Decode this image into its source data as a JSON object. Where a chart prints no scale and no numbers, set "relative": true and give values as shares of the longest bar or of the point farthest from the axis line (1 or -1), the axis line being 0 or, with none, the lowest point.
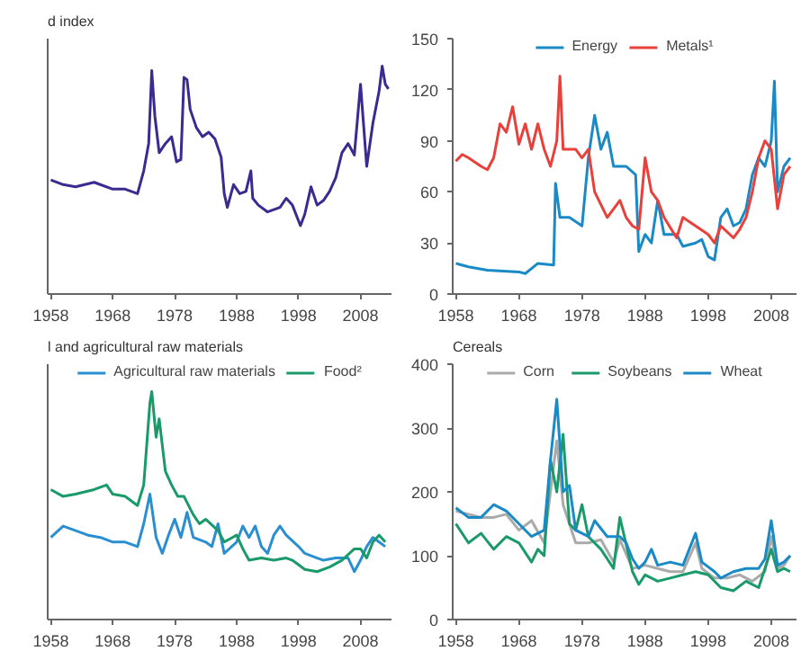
{
  "chart_data": [
    {
      "type": "line",
      "title": "d index",
      "relative": true,
      "xlim": [
        1957.5,
        2013
      ],
      "xticks": [
        1958,
        1968,
        1978,
        1988,
        1998,
        2008
      ],
      "grid": false,
      "legend": false,
      "series": [
        {
          "color": "#3b2a8f",
          "x": [
            1958,
            1960,
            1962,
            1965,
            1968,
            1970,
            1972,
            1973,
            1973.8,
            1974.3,
            1974.8,
            1975.5,
            1976.5,
            1977.5,
            1978.3,
            1979,
            1979.5,
            1980,
            1980.5,
            1981.5,
            1982.5,
            1983.5,
            1984.5,
            1985.5,
            1986,
            1986.5,
            1987.5,
            1988.5,
            1989.5,
            1990.3,
            1990.6,
            1991.5,
            1993,
            1995,
            1996,
            1997,
            1998.3,
            1999,
            2000,
            2001,
            2002,
            2003,
            2004,
            2005,
            2006,
            2007,
            2008,
            2008.5,
            2009,
            2010,
            2011,
            2011.5,
            2012,
            2012.5
          ],
          "values": [
            0.5,
            0.48,
            0.47,
            0.49,
            0.46,
            0.46,
            0.44,
            0.54,
            0.66,
            0.98,
            0.78,
            0.62,
            0.66,
            0.69,
            0.58,
            0.59,
            0.95,
            0.94,
            0.81,
            0.73,
            0.69,
            0.71,
            0.68,
            0.6,
            0.44,
            0.38,
            0.48,
            0.44,
            0.45,
            0.54,
            0.42,
            0.39,
            0.36,
            0.38,
            0.42,
            0.39,
            0.3,
            0.35,
            0.47,
            0.39,
            0.41,
            0.45,
            0.51,
            0.62,
            0.66,
            0.61,
            0.92,
            0.74,
            0.56,
            0.75,
            0.89,
            1.0,
            0.92,
            0.9
          ]
        }
      ]
    },
    {
      "type": "line",
      "xlim": [
        1957.5,
        2012
      ],
      "xticks": [
        1958,
        1968,
        1978,
        1988,
        1998,
        2008
      ],
      "ylim": [
        0,
        150
      ],
      "yticks": [
        0,
        30,
        60,
        90,
        120,
        150
      ],
      "grid": false,
      "legend": "top",
      "series": [
        {
          "name": "Energy",
          "color": "#1a8ac6",
          "x": [
            1958,
            1960,
            1963,
            1968,
            1969,
            1970,
            1971,
            1973.5,
            1973.8,
            1974.5,
            1976,
            1978,
            1979,
            1980,
            1981,
            1982,
            1983,
            1985,
            1986.5,
            1987,
            1988,
            1989,
            1990,
            1991,
            1993,
            1994,
            1996,
            1997,
            1998,
            1999,
            2000,
            2001,
            2002,
            2003,
            2004,
            2005,
            2006,
            2007,
            2008,
            2008.5,
            2009,
            2010,
            2011
          ],
          "values": [
            18,
            16,
            14,
            13,
            12,
            15,
            18,
            17,
            65,
            45,
            45,
            40,
            80,
            105,
            85,
            95,
            75,
            75,
            70,
            25,
            35,
            30,
            55,
            35,
            35,
            28,
            30,
            32,
            22,
            20,
            45,
            50,
            40,
            42,
            50,
            70,
            80,
            75,
            90,
            125,
            60,
            75,
            80
          ]
        },
        {
          "name": "Metals¹",
          "color": "#e8403a",
          "x": [
            1958,
            1959,
            1960,
            1962,
            1963,
            1964,
            1965,
            1966,
            1967,
            1968,
            1969,
            1970,
            1971,
            1972,
            1973,
            1974,
            1974.5,
            1975,
            1977,
            1978,
            1979,
            1980,
            1982,
            1984,
            1985,
            1986,
            1987,
            1988,
            1989,
            1990,
            1991,
            1993,
            1994,
            1996,
            1998,
            1999,
            2000,
            2002,
            2003,
            2004,
            2005,
            2006,
            2007,
            2008,
            2009,
            2010,
            2011
          ],
          "values": [
            78,
            82,
            80,
            75,
            73,
            80,
            100,
            95,
            110,
            88,
            100,
            85,
            100,
            85,
            75,
            90,
            128,
            85,
            85,
            80,
            85,
            60,
            45,
            55,
            45,
            40,
            38,
            80,
            60,
            55,
            45,
            33,
            45,
            40,
            35,
            30,
            40,
            33,
            38,
            45,
            60,
            80,
            90,
            85,
            50,
            70,
            75
          ]
        }
      ]
    },
    {
      "type": "line",
      "title": "l and agricultural raw materials",
      "relative": true,
      "xlim": [
        1957.5,
        2013
      ],
      "xticks": [
        1958,
        1968,
        1978,
        1988,
        1998,
        2008
      ],
      "grid": false,
      "legend": "top",
      "series": [
        {
          "name": "Agricultural raw materials",
          "color": "#2a8fd0",
          "x": [
            1958,
            1960,
            1962,
            1964,
            1966,
            1968,
            1970,
            1972,
            1973,
            1974,
            1975,
            1976,
            1977,
            1978,
            1979,
            1980,
            1981,
            1983,
            1984,
            1985,
            1986,
            1988,
            1989,
            1990,
            1991,
            1992,
            1993,
            1994,
            1995,
            1996,
            1998,
            1999,
            2001,
            2002,
            2004,
            2006,
            2007,
            2008,
            2009,
            2010,
            2011,
            2012
          ],
          "values": [
            0.36,
            0.41,
            0.39,
            0.37,
            0.36,
            0.34,
            0.34,
            0.32,
            0.42,
            0.55,
            0.36,
            0.29,
            0.37,
            0.44,
            0.36,
            0.47,
            0.36,
            0.34,
            0.32,
            0.42,
            0.29,
            0.34,
            0.41,
            0.36,
            0.41,
            0.32,
            0.29,
            0.37,
            0.41,
            0.37,
            0.32,
            0.29,
            0.27,
            0.26,
            0.27,
            0.27,
            0.21,
            0.26,
            0.32,
            0.36,
            0.34,
            0.32
          ]
        },
        {
          "name": "Food²",
          "color": "#1a9a6a",
          "x": [
            1958,
            1960,
            1962,
            1965,
            1967,
            1968,
            1970,
            1972,
            1973,
            1974,
            1974.3,
            1975,
            1975.5,
            1976.5,
            1977.5,
            1978.5,
            1979.5,
            1981,
            1982,
            1983,
            1985,
            1986,
            1988,
            1989,
            1990,
            1992,
            1994,
            1996,
            1997,
            1999,
            2001,
            2003,
            2005,
            2007,
            2008,
            2009,
            2010,
            2011,
            2012
          ],
          "values": [
            0.57,
            0.54,
            0.55,
            0.57,
            0.59,
            0.55,
            0.54,
            0.5,
            0.59,
            0.95,
            1.0,
            0.8,
            0.88,
            0.65,
            0.59,
            0.54,
            0.54,
            0.46,
            0.42,
            0.44,
            0.39,
            0.34,
            0.37,
            0.31,
            0.26,
            0.27,
            0.26,
            0.27,
            0.26,
            0.22,
            0.21,
            0.23,
            0.26,
            0.31,
            0.31,
            0.27,
            0.34,
            0.37,
            0.34
          ]
        }
      ]
    },
    {
      "type": "line",
      "title": "Cereals",
      "xlim": [
        1957.5,
        2012
      ],
      "xticks": [
        1958,
        1968,
        1978,
        1988,
        1998,
        2008
      ],
      "ylim": [
        0,
        400
      ],
      "yticks": [
        0,
        100,
        200,
        300,
        400
      ],
      "grid": false,
      "legend": "top",
      "series": [
        {
          "name": "Corn",
          "color": "#aaaaaa",
          "x": [
            1958,
            1960,
            1962,
            1964,
            1966,
            1968,
            1970,
            1972,
            1973,
            1974,
            1975,
            1977,
            1979,
            1981,
            1983,
            1984,
            1986,
            1988,
            1990,
            1992,
            1994,
            1996,
            1997,
            1999,
            2001,
            2003,
            2005,
            2007,
            2008,
            2009,
            2010,
            2011
          ],
          "values": [
            170,
            165,
            160,
            160,
            165,
            140,
            155,
            120,
            200,
            280,
            180,
            120,
            120,
            125,
            90,
            125,
            80,
            85,
            80,
            75,
            75,
            120,
            80,
            65,
            65,
            70,
            60,
            75,
            130,
            80,
            85,
            100
          ]
        },
        {
          "name": "Soybeans",
          "color": "#1a9a6a",
          "x": [
            1958,
            1960,
            1962,
            1964,
            1966,
            1968,
            1970,
            1971,
            1972,
            1973,
            1974,
            1975,
            1976,
            1977,
            1978,
            1979,
            1981,
            1983,
            1984,
            1986,
            1987,
            1988,
            1990,
            1992,
            1994,
            1996,
            1998,
            2000,
            2002,
            2004,
            2006,
            2008,
            2009,
            2010,
            2011
          ],
          "values": [
            150,
            120,
            135,
            110,
            130,
            120,
            90,
            110,
            100,
            250,
            200,
            290,
            150,
            140,
            180,
            130,
            110,
            80,
            160,
            75,
            55,
            70,
            60,
            65,
            70,
            75,
            70,
            50,
            45,
            60,
            50,
            110,
            75,
            80,
            75
          ]
        },
        {
          "name": "Wheat",
          "color": "#1a8ac6",
          "x": [
            1958,
            1960,
            1962,
            1964,
            1966,
            1968,
            1970,
            1972,
            1973,
            1974,
            1975,
            1976,
            1977,
            1979,
            1980,
            1982,
            1984,
            1985,
            1986,
            1987,
            1988,
            1989,
            1990,
            1992,
            1994,
            1996,
            1997,
            1999,
            2000,
            2002,
            2004,
            2006,
            2007,
            2008,
            2009,
            2010,
            2011
          ],
          "values": [
            175,
            160,
            160,
            180,
            170,
            150,
            130,
            140,
            250,
            345,
            200,
            210,
            140,
            130,
            155,
            130,
            130,
            120,
            95,
            80,
            90,
            110,
            85,
            90,
            85,
            135,
            90,
            75,
            65,
            75,
            80,
            80,
            95,
            155,
            85,
            90,
            100
          ]
        }
      ]
    }
  ]
}
